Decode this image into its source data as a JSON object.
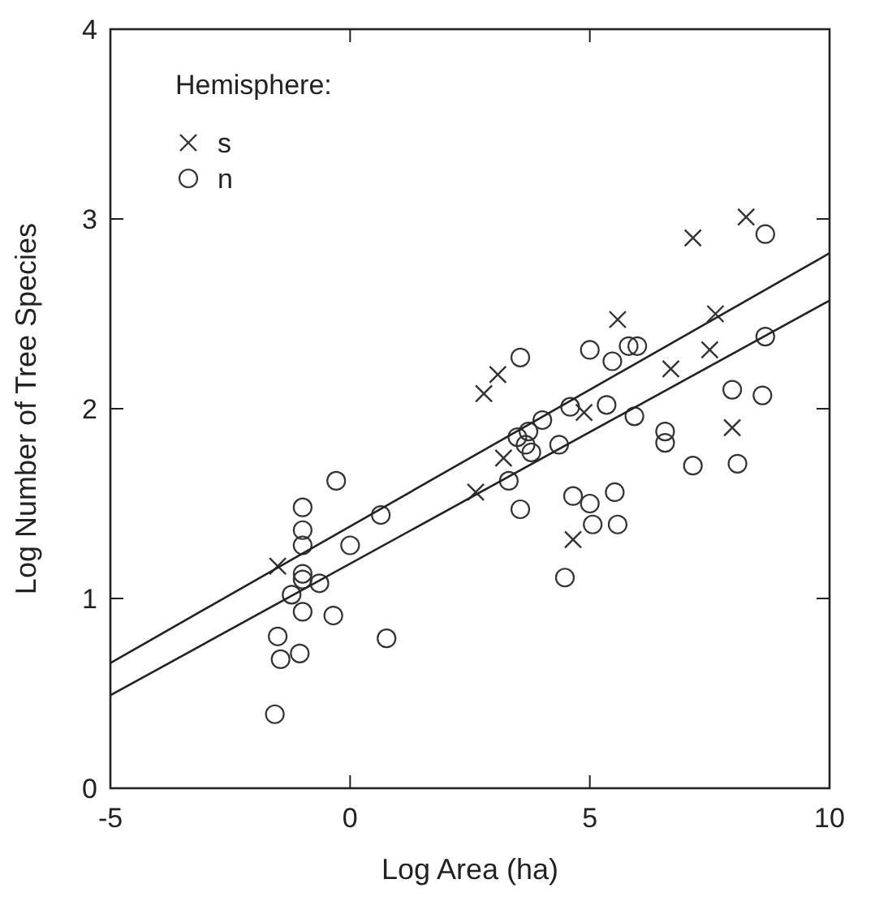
{
  "chart_data": {
    "type": "scatter",
    "xlabel": "Log Area (ha)",
    "ylabel": "Log Number of Tree Species",
    "legend_title": "Hemisphere:",
    "legend": "top left",
    "grid": false,
    "xlim": [
      -5,
      10
    ],
    "ylim": [
      0,
      4
    ],
    "xticks": [
      -5,
      0,
      5,
      10
    ],
    "yticks": [
      0,
      1,
      2,
      3,
      4
    ],
    "series": [
      {
        "name": "s",
        "color": "#333333",
        "marker": "cross",
        "x": [
          7.15,
          8.26,
          5.58,
          7.62,
          7.5,
          6.69,
          7.97,
          2.79,
          3.08,
          2.62,
          3.2,
          4.88,
          4.65,
          -1.51
        ],
        "values": [
          2.9,
          3.01,
          2.47,
          2.5,
          2.31,
          2.21,
          1.9,
          2.08,
          2.18,
          1.56,
          1.74,
          1.98,
          1.31,
          1.17
        ]
      },
      {
        "name": "n",
        "color": "#333333",
        "marker": "circle",
        "x": [
          8.66,
          8.66,
          8.6,
          7.97,
          8.08,
          7.15,
          6.57,
          6.57,
          5.93,
          5.81,
          5.99,
          5.47,
          5.0,
          5.35,
          4.59,
          4.36,
          4.65,
          5.0,
          5.06,
          5.52,
          5.58,
          4.48,
          3.55,
          4.01,
          3.72,
          3.49,
          3.66,
          3.78,
          3.31,
          3.55,
          -0.29,
          0.64,
          0.0,
          -0.64,
          -0.35,
          0.76,
          -0.99,
          -0.99,
          -0.99,
          -0.99,
          -0.99,
          -1.22,
          -0.99,
          -1.51,
          -1.45,
          -1.05,
          -1.57
        ],
        "values": [
          2.92,
          2.38,
          2.07,
          2.1,
          1.71,
          1.7,
          1.88,
          1.82,
          1.96,
          2.33,
          2.33,
          2.25,
          2.31,
          2.02,
          2.01,
          1.81,
          1.54,
          1.5,
          1.39,
          1.56,
          1.39,
          1.11,
          2.27,
          1.94,
          1.88,
          1.85,
          1.81,
          1.77,
          1.62,
          1.47,
          1.62,
          1.44,
          1.28,
          1.08,
          0.91,
          0.79,
          1.48,
          1.36,
          1.28,
          1.13,
          1.1,
          1.02,
          0.93,
          0.8,
          0.68,
          0.71,
          0.39
        ]
      },
      {
        "type": "line",
        "color": "#222222",
        "line_style": "solid",
        "x": [
          -5,
          10
        ],
        "values": [
          0.66,
          2.82
        ]
      },
      {
        "type": "line",
        "color": "#222222",
        "line_style": "solid",
        "x": [
          -5,
          10
        ],
        "values": [
          0.49,
          2.57
        ]
      }
    ]
  }
}
